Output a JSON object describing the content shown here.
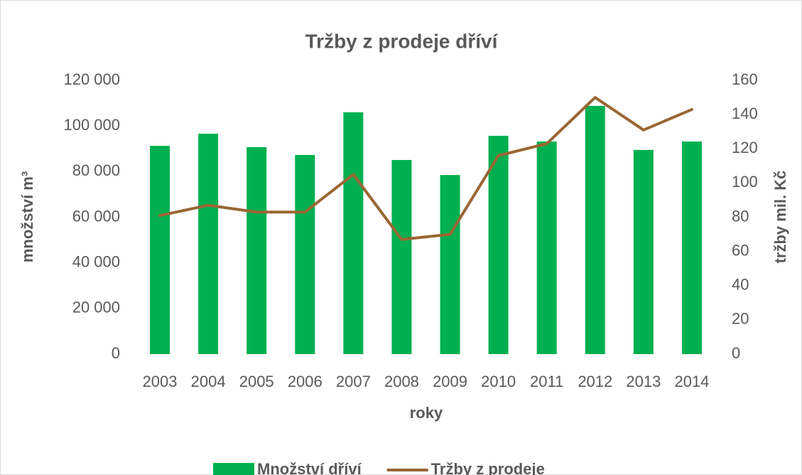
{
  "chart_data": {
    "type": "bar+line",
    "title": "Tržby z prodeje dříví",
    "xlabel": "roky",
    "ylabel": "množství m³",
    "y2label": "tržby mil. Kč",
    "categories": [
      "2003",
      "2004",
      "2005",
      "2006",
      "2007",
      "2008",
      "2009",
      "2010",
      "2011",
      "2012",
      "2013",
      "2014"
    ],
    "series": [
      {
        "name": "Množství dříví",
        "type": "bar",
        "color": "#00b050",
        "values": [
          91300,
          96600,
          90700,
          87300,
          106000,
          85100,
          78500,
          95700,
          93200,
          108800,
          89500,
          93200
        ]
      },
      {
        "name": "Tržby z prodeje",
        "type": "line",
        "axis": "y2",
        "color": "#996633",
        "values": [
          81,
          87,
          83,
          83,
          105,
          67,
          70,
          116,
          123,
          150,
          131,
          143
        ]
      }
    ],
    "ylim": [
      0,
      120000
    ],
    "yticks": [
      0,
      {
        "value": 20000,
        "label": "20 000"
      },
      {
        "value": 40000,
        "label": "40 000"
      },
      {
        "value": 60000,
        "label": "60 000"
      },
      {
        "value": 80000,
        "label": "80 000"
      },
      {
        "value": 100000,
        "label": "100 000"
      },
      {
        "value": 120000,
        "label": "120 000"
      }
    ],
    "y2lim": [
      0,
      160
    ],
    "y2ticks": [
      0,
      20,
      40,
      60,
      80,
      100,
      120,
      140,
      160
    ],
    "legend": "bottom",
    "grid": false
  }
}
